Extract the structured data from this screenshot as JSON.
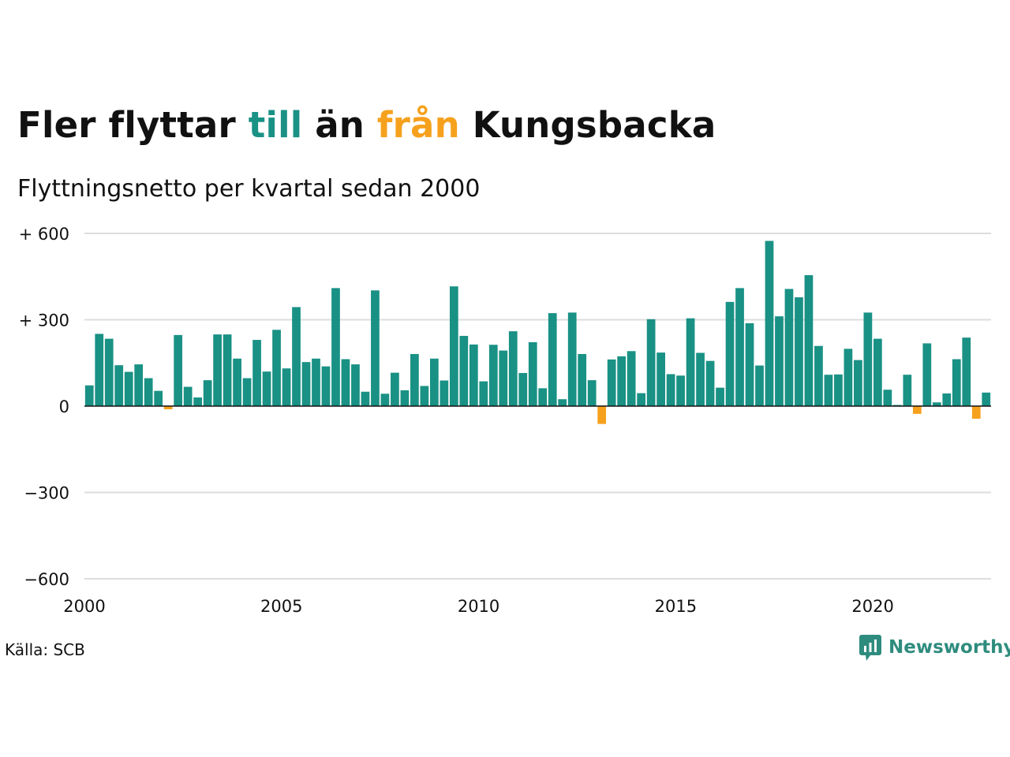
{
  "title": {
    "part1": "Fler flyttar ",
    "part2": "till",
    "part3": " än ",
    "part4": "från",
    "part5": " Kungsbacka"
  },
  "subtitle": "Flyttningsnetto per kvartal sedan 2000",
  "source": "Källa: SCB",
  "brand": "Newsworthy",
  "colors": {
    "positive": "#1a9185",
    "negative": "#f6a11d",
    "grid": "#dddddd",
    "axis": "#111111"
  },
  "chart_data": {
    "type": "bar",
    "title": "Fler flyttar till än från Kungsbacka",
    "subtitle": "Flyttningsnetto per kvartal sedan 2000",
    "x_start": 2000,
    "x_step": 0.25,
    "xlim": [
      2000,
      2023
    ],
    "ylim": [
      -600,
      600
    ],
    "y_ticks": [
      600,
      300,
      0,
      -300,
      -600
    ],
    "y_tick_labels": [
      "+ 600",
      "+ 300",
      "0",
      "−300",
      "−600"
    ],
    "x_ticks": [
      2000,
      2005,
      2010,
      2015,
      2020
    ],
    "x_tick_labels": [
      "2000",
      "2005",
      "2010",
      "2015",
      "2020"
    ],
    "grid": true,
    "values": [
      72,
      251,
      234,
      142,
      119,
      145,
      97,
      53,
      -11,
      247,
      67,
      30,
      90,
      249,
      249,
      165,
      97,
      230,
      120,
      265,
      131,
      344,
      153,
      165,
      138,
      410,
      163,
      145,
      50,
      402,
      43,
      116,
      55,
      181,
      70,
      165,
      89,
      416,
      244,
      214,
      86,
      213,
      193,
      260,
      115,
      222,
      62,
      323,
      24,
      325,
      181,
      90,
      -62,
      162,
      173,
      191,
      45,
      302,
      186,
      111,
      106,
      305,
      185,
      157,
      64,
      362,
      410,
      288,
      141,
      574,
      312,
      407,
      378,
      455,
      209,
      109,
      110,
      199,
      160,
      325,
      234,
      57,
      4,
      109,
      -27,
      218,
      13,
      44,
      163,
      238,
      -44,
      47
    ]
  }
}
